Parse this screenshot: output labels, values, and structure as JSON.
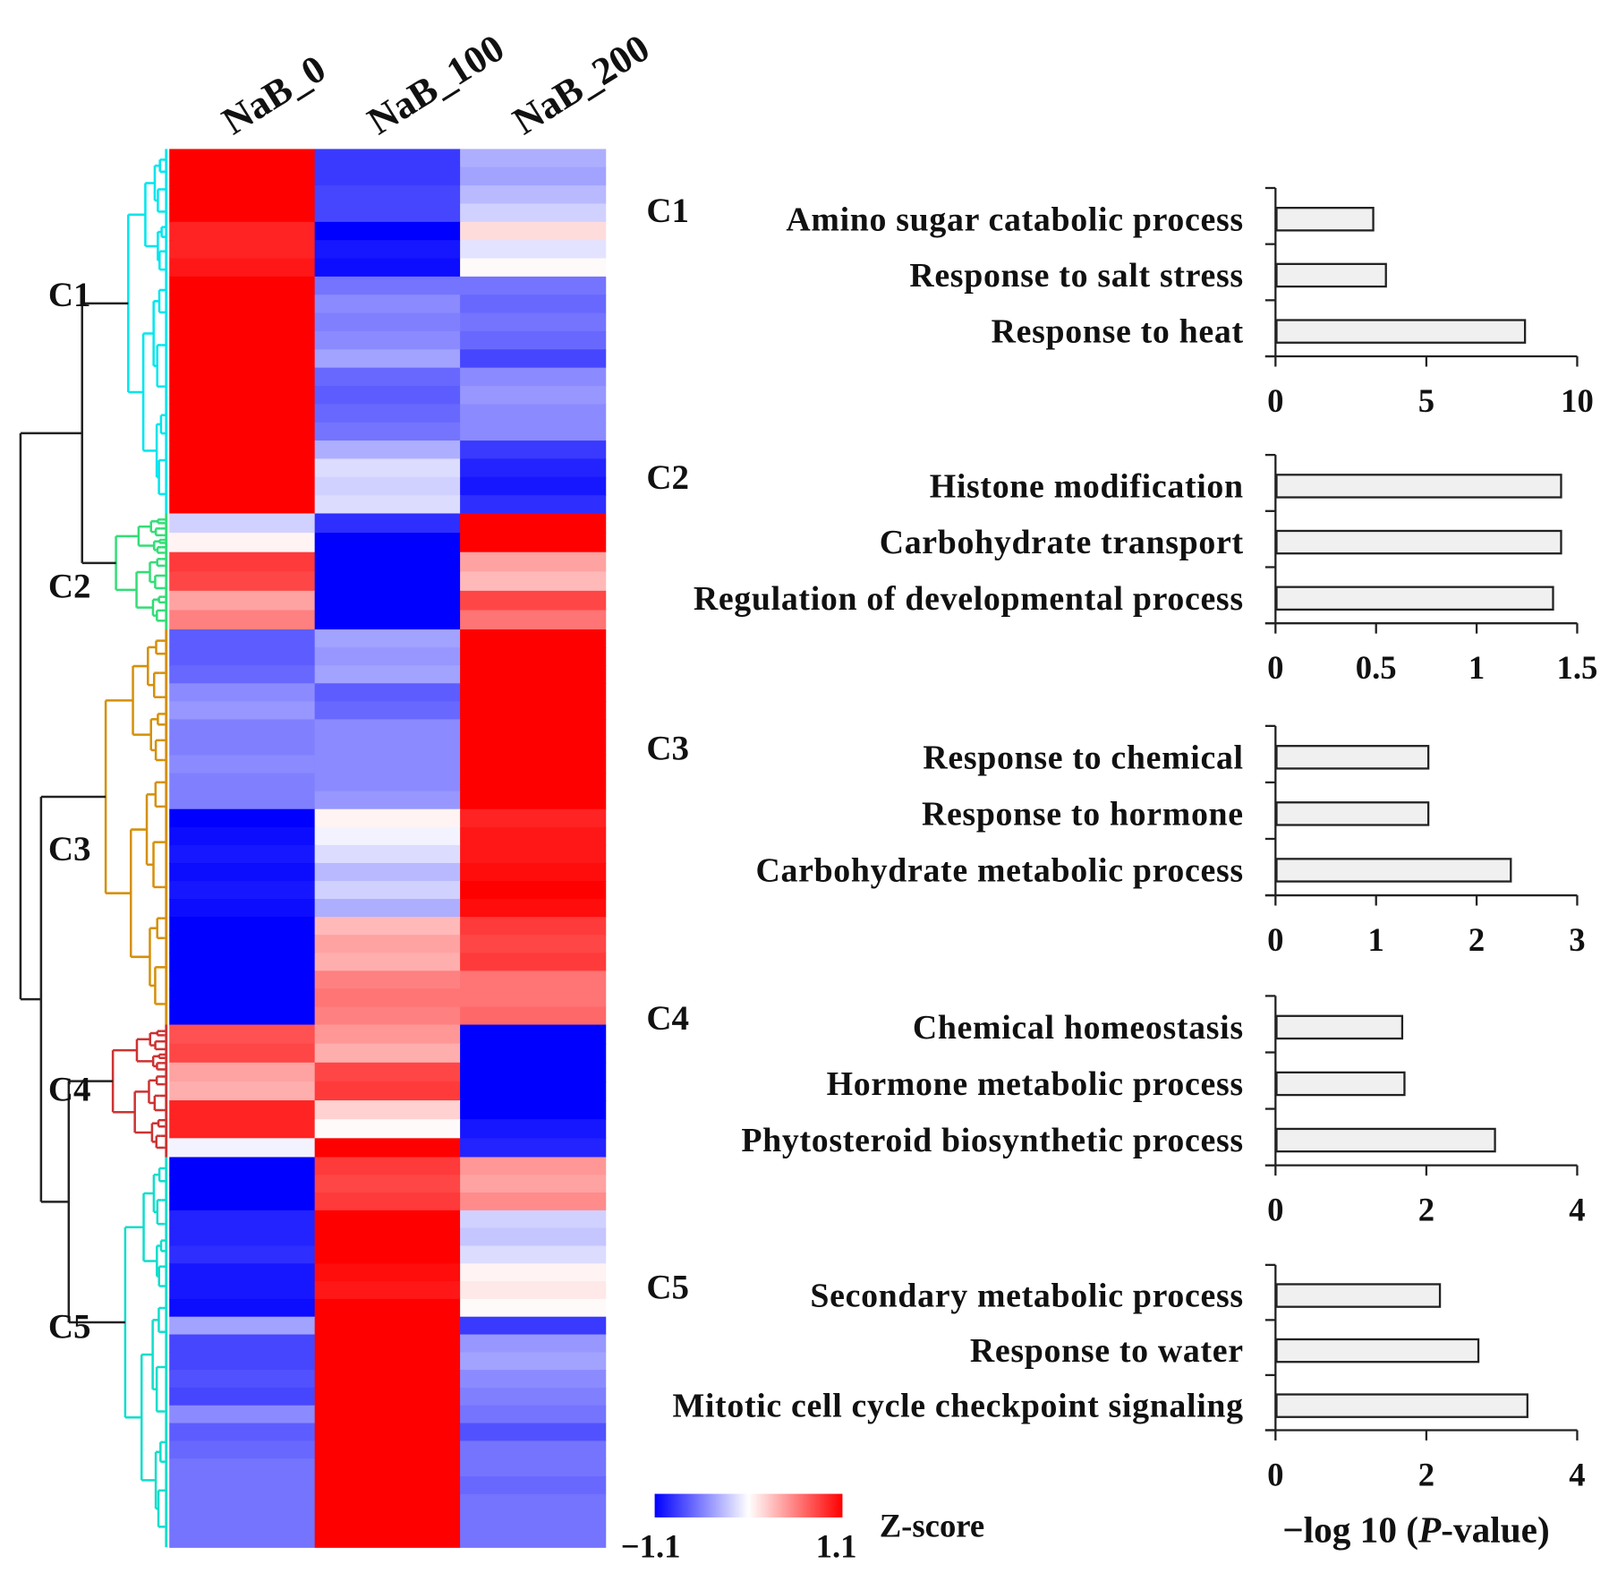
{
  "chart_data": [
    {
      "type": "heatmap",
      "columns": [
        "NaB_0",
        "NaB_100",
        "NaB_200"
      ],
      "colorbar": {
        "label": "Z-score",
        "min": -1.1,
        "max": 1.1,
        "min_label": "−1.1",
        "max_label": "1.1",
        "low_color": "#0000ff",
        "mid_color": "#ffffff",
        "high_color": "#ff0000"
      },
      "clusters": [
        {
          "name": "C1",
          "color": "#00e5ee",
          "rows": [
            [
              1.1,
              -0.85,
              -0.35
            ],
            [
              1.1,
              -0.85,
              -0.4
            ],
            [
              1.1,
              -0.8,
              -0.3
            ],
            [
              1.1,
              -0.8,
              -0.2
            ],
            [
              0.95,
              -1.1,
              0.15
            ],
            [
              0.95,
              -1.0,
              -0.12
            ],
            [
              1.0,
              -1.05,
              0.02
            ],
            [
              1.1,
              -0.6,
              -0.6
            ],
            [
              1.1,
              -0.5,
              -0.65
            ],
            [
              1.1,
              -0.55,
              -0.6
            ],
            [
              1.1,
              -0.5,
              -0.65
            ],
            [
              1.1,
              -0.4,
              -0.8
            ],
            [
              1.1,
              -0.65,
              -0.5
            ],
            [
              1.1,
              -0.7,
              -0.45
            ],
            [
              1.1,
              -0.65,
              -0.5
            ],
            [
              1.1,
              -0.6,
              -0.5
            ],
            [
              1.1,
              -0.35,
              -0.85
            ],
            [
              1.1,
              -0.15,
              -0.95
            ],
            [
              1.1,
              -0.2,
              -1.0
            ],
            [
              1.1,
              -0.15,
              -0.9
            ]
          ]
        },
        {
          "name": "C2",
          "color": "#33dd77",
          "rows": [
            [
              -0.2,
              -0.9,
              1.1
            ],
            [
              0.05,
              -1.1,
              1.1
            ],
            [
              0.85,
              -1.1,
              0.4
            ],
            [
              0.8,
              -1.1,
              0.3
            ],
            [
              0.4,
              -1.1,
              0.8
            ],
            [
              0.55,
              -1.1,
              0.6
            ]
          ]
        },
        {
          "name": "C3",
          "color": "#d4900a",
          "rows": [
            [
              -0.7,
              -0.4,
              1.1
            ],
            [
              -0.7,
              -0.45,
              1.1
            ],
            [
              -0.65,
              -0.4,
              1.1
            ],
            [
              -0.5,
              -0.7,
              1.1
            ],
            [
              -0.45,
              -0.65,
              1.1
            ],
            [
              -0.55,
              -0.5,
              1.1
            ],
            [
              -0.55,
              -0.5,
              1.1
            ],
            [
              -0.5,
              -0.5,
              1.1
            ],
            [
              -0.55,
              -0.5,
              1.1
            ],
            [
              -0.55,
              -0.45,
              1.1
            ],
            [
              -1.1,
              0.05,
              0.95
            ],
            [
              -1.05,
              -0.05,
              1.0
            ],
            [
              -1.0,
              -0.15,
              1.0
            ],
            [
              -1.05,
              -0.3,
              1.05
            ],
            [
              -1.0,
              -0.2,
              1.1
            ],
            [
              -1.05,
              -0.35,
              1.05
            ],
            [
              -1.1,
              0.3,
              0.85
            ],
            [
              -1.1,
              0.4,
              0.8
            ],
            [
              -1.1,
              0.35,
              0.85
            ],
            [
              -1.1,
              0.55,
              0.6
            ],
            [
              -1.1,
              0.6,
              0.6
            ],
            [
              -1.1,
              0.55,
              0.65
            ]
          ]
        },
        {
          "name": "C4",
          "color": "#cc3333",
          "rows": [
            [
              0.75,
              0.45,
              -1.1
            ],
            [
              0.8,
              0.35,
              -1.1
            ],
            [
              0.4,
              0.8,
              -1.1
            ],
            [
              0.35,
              0.85,
              -1.1
            ],
            [
              0.95,
              0.2,
              -1.1
            ],
            [
              0.95,
              0.02,
              -1.0
            ],
            [
              -0.05,
              1.1,
              -0.95
            ]
          ]
        },
        {
          "name": "C5",
          "color": "#11ddcc",
          "rows": [
            [
              -1.1,
              0.85,
              0.45
            ],
            [
              -1.1,
              0.8,
              0.4
            ],
            [
              -1.1,
              0.85,
              0.5
            ],
            [
              -0.95,
              1.1,
              -0.2
            ],
            [
              -0.95,
              1.1,
              -0.25
            ],
            [
              -0.9,
              1.1,
              -0.15
            ],
            [
              -1.0,
              1.05,
              0.05
            ],
            [
              -1.0,
              1.0,
              0.1
            ],
            [
              -1.05,
              1.1,
              0.02
            ],
            [
              -0.4,
              1.1,
              -0.85
            ],
            [
              -0.8,
              1.1,
              -0.45
            ],
            [
              -0.8,
              1.1,
              -0.4
            ],
            [
              -0.75,
              1.1,
              -0.5
            ],
            [
              -0.8,
              1.1,
              -0.55
            ],
            [
              -0.5,
              1.1,
              -0.6
            ],
            [
              -0.7,
              1.1,
              -0.75
            ],
            [
              -0.65,
              1.1,
              -0.6
            ],
            [
              -0.6,
              1.1,
              -0.6
            ],
            [
              -0.6,
              1.1,
              -0.65
            ],
            [
              -0.6,
              1.1,
              -0.6
            ],
            [
              -0.6,
              1.1,
              -0.6
            ],
            [
              -0.6,
              1.1,
              -0.6
            ]
          ]
        }
      ]
    },
    {
      "type": "bar",
      "orientation": "horizontal",
      "xlabel_prefix": "−log 10 (",
      "xlabel_italic": "P",
      "xlabel_suffix": "-value)",
      "bar_color": "#f0f0f0",
      "panels": [
        {
          "cluster": "C1",
          "xlim": [
            0,
            10
          ],
          "ticks": [
            "0",
            "5",
            "10"
          ],
          "categories": [
            "Amino sugar catabolic process",
            "Response to salt stress",
            "Response to heat"
          ],
          "values": [
            3.24,
            3.66,
            8.27
          ]
        },
        {
          "cluster": "C2",
          "xlim": [
            0,
            1.5
          ],
          "ticks": [
            "0",
            "0.5",
            "1",
            "1.5"
          ],
          "categories": [
            "Histone modification",
            "Carbohydrate transport",
            "Regulation of developmental process"
          ],
          "values": [
            1.42,
            1.42,
            1.38
          ]
        },
        {
          "cluster": "C3",
          "xlim": [
            0,
            3
          ],
          "ticks": [
            "0",
            "1",
            "2",
            "3"
          ],
          "categories": [
            "Response to chemical",
            "Response to hormone",
            "Carbohydrate metabolic process"
          ],
          "values": [
            1.52,
            1.52,
            2.34
          ]
        },
        {
          "cluster": "C4",
          "xlim": [
            0,
            4
          ],
          "ticks": [
            "0",
            "2",
            "4"
          ],
          "categories": [
            "Chemical homeostasis",
            "Hormone metabolic process",
            "Phytosteroid biosynthetic process"
          ],
          "values": [
            1.68,
            1.71,
            2.91
          ]
        },
        {
          "cluster": "C5",
          "xlim": [
            0,
            4
          ],
          "ticks": [
            "0",
            "2",
            "4"
          ],
          "categories": [
            "Secondary metabolic process",
            "Response to water",
            "Mitotic cell cycle checkpoint signaling"
          ],
          "values": [
            2.18,
            2.69,
            3.34
          ]
        }
      ]
    }
  ]
}
